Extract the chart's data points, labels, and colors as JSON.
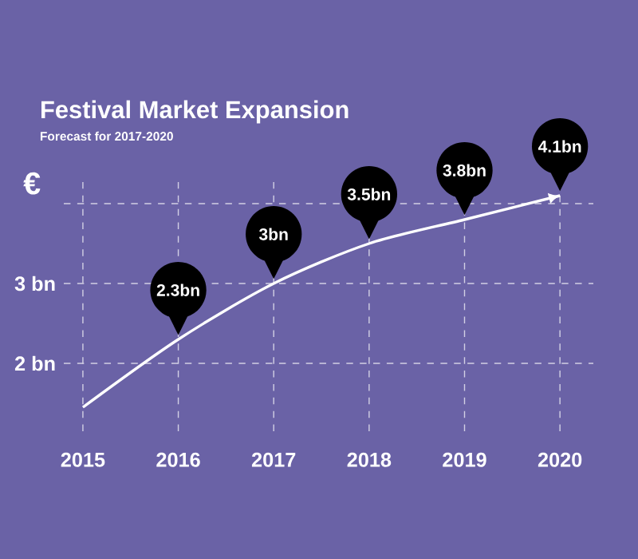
{
  "chart_data": {
    "type": "line",
    "title": "Festival Market Expansion",
    "subtitle": "Forecast for 2017-2020",
    "ylabel": "€",
    "categories": [
      "2015",
      "2016",
      "2017",
      "2018",
      "2019",
      "2020"
    ],
    "series": [
      {
        "color": "#ffffff",
        "values": [
          1.45,
          2.3,
          3,
          3.5,
          3.8,
          4.1
        ],
        "value_labels": [
          null,
          "2.3bn",
          "3bn",
          "3.5bn",
          "3.8bn",
          "4.1bn"
        ]
      }
    ],
    "ylim": [
      1.15,
      4.35
    ],
    "yticks": [
      {
        "value": 2,
        "label": "2 bn"
      },
      {
        "value": 3,
        "label": "3 bn"
      },
      {
        "value": 4,
        "label": null
      }
    ],
    "grid": true,
    "marker": "none",
    "line_style": "solid"
  }
}
